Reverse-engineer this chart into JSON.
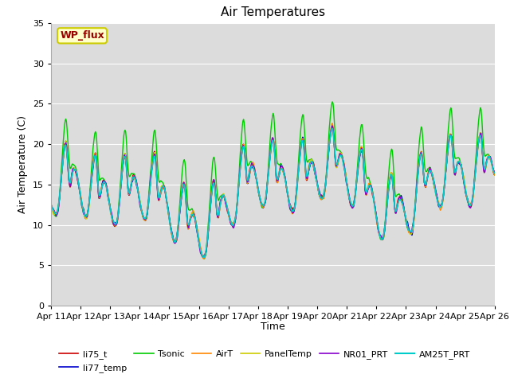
{
  "title": "Air Temperatures",
  "ylabel": "Air Temperature (C)",
  "xlabel": "Time",
  "ylim": [
    0,
    35
  ],
  "yticks": [
    0,
    5,
    10,
    15,
    20,
    25,
    30,
    35
  ],
  "xtick_labels": [
    "Apr 11",
    "Apr 12",
    "Apr 13",
    "Apr 14",
    "Apr 15",
    "Apr 16",
    "Apr 17",
    "Apr 18",
    "Apr 19",
    "Apr 20",
    "Apr 21",
    "Apr 22",
    "Apr 23",
    "Apr 24",
    "Apr 25",
    "Apr 26"
  ],
  "legend_entries": [
    "li75_t",
    "li77_temp",
    "Tsonic",
    "AirT",
    "PanelTemp",
    "NR01_PRT",
    "AM25T_PRT"
  ],
  "line_colors": [
    "#cc0000",
    "#0000cc",
    "#00cc00",
    "#ff8800",
    "#cccc00",
    "#8800cc",
    "#00cccc"
  ],
  "line_widths": [
    1.0,
    1.0,
    1.0,
    1.0,
    1.0,
    1.0,
    1.2
  ],
  "bg_color": "#dcdcdc",
  "annotation_text": "WP_flux",
  "annotation_color": "#990000",
  "annotation_bg": "#ffffcc",
  "annotation_border": "#cccc00",
  "title_fontsize": 11,
  "axis_fontsize": 9,
  "tick_fontsize": 8
}
